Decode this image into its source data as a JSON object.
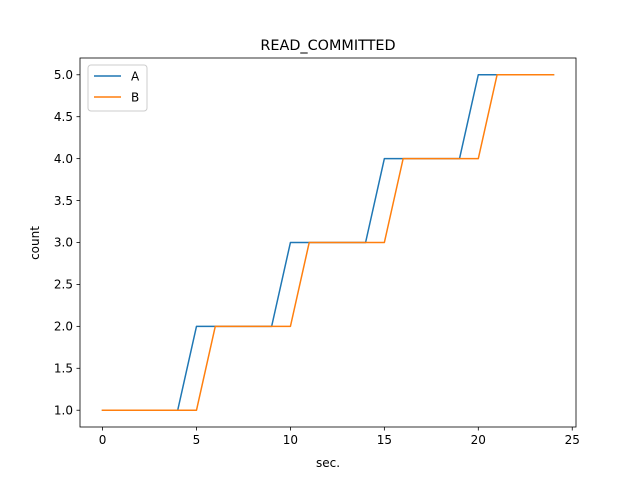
{
  "chart_data": {
    "type": "line",
    "title": "READ_COMMITTED",
    "xlabel": "sec.",
    "ylabel": "count",
    "xlim": [
      -1.2,
      25.2
    ],
    "ylim": [
      0.8,
      5.2
    ],
    "xticks": [
      0,
      5,
      10,
      15,
      20,
      25
    ],
    "xtick_labels": [
      "0",
      "5",
      "10",
      "15",
      "20",
      "25"
    ],
    "yticks": [
      1.0,
      1.5,
      2.0,
      2.5,
      3.0,
      3.5,
      4.0,
      4.5,
      5.0
    ],
    "ytick_labels": [
      "1.0",
      "1.5",
      "2.0",
      "2.5",
      "3.0",
      "3.5",
      "4.0",
      "4.5",
      "5.0"
    ],
    "grid": false,
    "legend": {
      "placement": "top-left"
    },
    "x": [
      0,
      1,
      2,
      3,
      4,
      5,
      6,
      7,
      8,
      9,
      10,
      11,
      12,
      13,
      14,
      15,
      16,
      17,
      18,
      19,
      20,
      21,
      22,
      23,
      24
    ],
    "series": [
      {
        "name": "A",
        "color": "#1f77b4",
        "values": [
          1,
          1,
          1,
          1,
          1,
          2,
          2,
          2,
          2,
          2,
          3,
          3,
          3,
          3,
          3,
          4,
          4,
          4,
          4,
          4,
          5,
          5,
          5,
          5,
          5
        ]
      },
      {
        "name": "B",
        "color": "#ff7f0e",
        "values": [
          1,
          1,
          1,
          1,
          1,
          1,
          2,
          2,
          2,
          2,
          2,
          3,
          3,
          3,
          3,
          3,
          4,
          4,
          4,
          4,
          4,
          5,
          5,
          5,
          5
        ]
      }
    ]
  }
}
